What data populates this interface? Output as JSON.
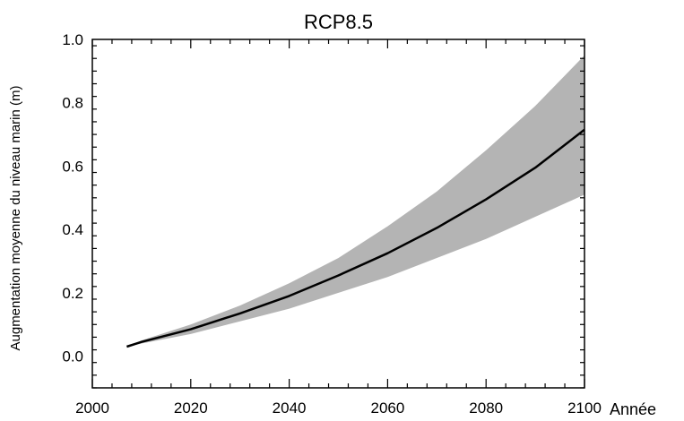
{
  "chart_data": {
    "type": "area",
    "title": "RCP8.5",
    "xlabel": "Année",
    "ylabel": "Augmentation moyenne du niveau marin (m)",
    "xlim": [
      2000,
      2100
    ],
    "ylim": [
      -0.1,
      1.0
    ],
    "x_ticks": [
      2000,
      2020,
      2040,
      2060,
      2080,
      2100
    ],
    "y_ticks": [
      0.0,
      0.2,
      0.4,
      0.6,
      0.8,
      1.0
    ],
    "x_tick_labels": [
      "2000",
      "2020",
      "2040",
      "2060",
      "2080",
      "2100"
    ],
    "y_tick_labels": [
      "0.0",
      "0.2",
      "0.4",
      "0.6",
      "0.8",
      "1.0"
    ],
    "grid": false,
    "series": [
      {
        "role": "median",
        "x": [
          2007,
          2010,
          2020,
          2030,
          2040,
          2050,
          2060,
          2070,
          2080,
          2090,
          2100
        ],
        "y": [
          0.03,
          0.045,
          0.085,
          0.135,
          0.19,
          0.255,
          0.325,
          0.405,
          0.495,
          0.595,
          0.715
        ],
        "color": "#000000"
      },
      {
        "role": "likely-range",
        "x": [
          2007,
          2010,
          2020,
          2030,
          2040,
          2050,
          2060,
          2070,
          2080,
          2090,
          2100
        ],
        "lower": [
          0.03,
          0.04,
          0.07,
          0.11,
          0.15,
          0.2,
          0.25,
          0.31,
          0.37,
          0.44,
          0.51
        ],
        "upper": [
          0.03,
          0.05,
          0.1,
          0.16,
          0.23,
          0.31,
          0.41,
          0.52,
          0.65,
          0.79,
          0.95
        ],
        "color": "#b4b4b4"
      }
    ]
  }
}
